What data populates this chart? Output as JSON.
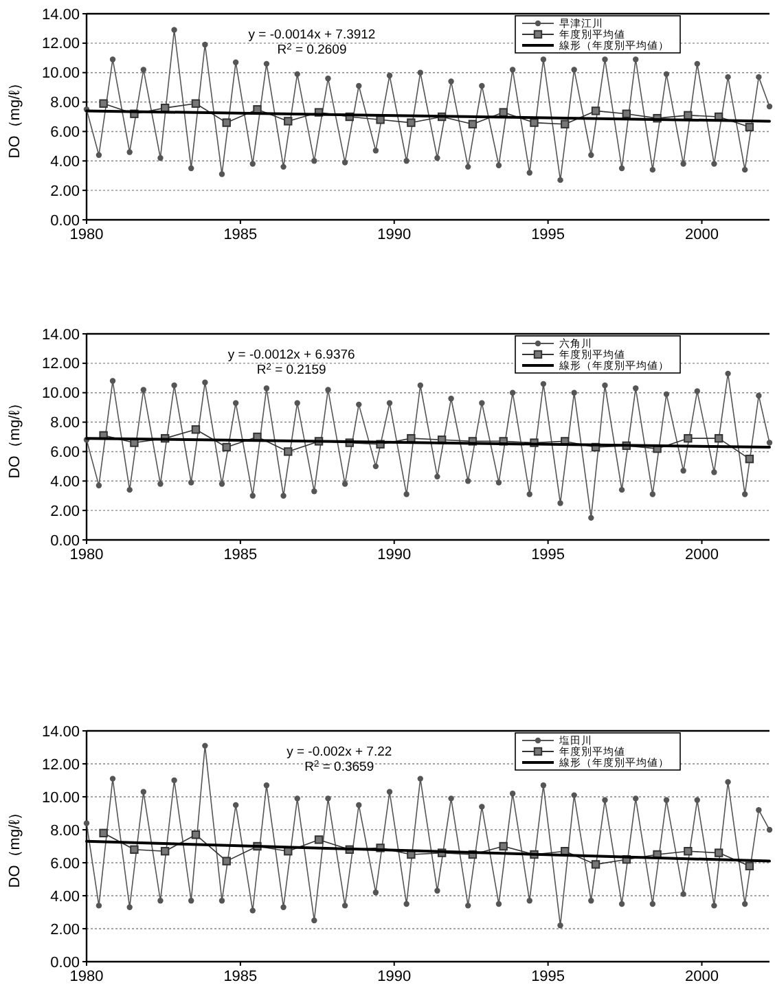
{
  "chart_data": [
    {
      "type": "line",
      "ylabel": "DO（mg/ℓ）",
      "xlim": [
        1980,
        2002.2
      ],
      "ylim": [
        0,
        14
      ],
      "xticks": [
        1980,
        1985,
        1990,
        1995,
        2000
      ],
      "yticks": [
        {
          "value": 0,
          "label": "0.00"
        },
        {
          "value": 2,
          "label": "2.00"
        },
        {
          "value": 4,
          "label": "4.00"
        },
        {
          "value": 6,
          "label": "6.00"
        },
        {
          "value": 8,
          "label": "8.00"
        },
        {
          "value": 10,
          "label": "10.00"
        },
        {
          "value": 12,
          "label": "12.00"
        },
        {
          "value": 14,
          "label": "14.00"
        }
      ],
      "grid": "y",
      "legend": "top right",
      "annotations": [
        "y = -0.0014x + 7.3912",
        "R$^{2}$ = 0.2609"
      ],
      "series": [
        {
          "name": "早津江川",
          "color": "#555555",
          "marker": "circle",
          "x": [
            1980,
            1980.4,
            1980.85,
            1981.4,
            1981.85,
            1982.4,
            1982.85,
            1983.4,
            1983.85,
            1984.4,
            1984.85,
            1985.4,
            1985.85,
            1986.4,
            1986.85,
            1987.4,
            1987.85,
            1988.4,
            1988.85,
            1989.4,
            1989.85,
            1990.4,
            1990.85,
            1991.4,
            1991.85,
            1992.4,
            1992.85,
            1993.4,
            1993.85,
            1994.4,
            1994.85,
            1995.4,
            1995.85,
            1996.4,
            1996.85,
            1997.4,
            1997.85,
            1998.4,
            1998.85,
            1999.4,
            1999.85,
            2000.4,
            2000.85,
            2001.4,
            2001.85,
            2002.2
          ],
          "values": [
            7.5,
            4.4,
            10.9,
            4.6,
            10.2,
            4.2,
            12.9,
            3.5,
            11.9,
            3.1,
            10.7,
            3.8,
            10.6,
            3.6,
            9.9,
            4.0,
            9.6,
            3.9,
            9.1,
            4.7,
            9.8,
            4.0,
            10.0,
            4.2,
            9.4,
            3.6,
            9.1,
            3.7,
            10.2,
            3.2,
            10.9,
            2.7,
            10.2,
            4.4,
            10.9,
            3.5,
            10.9,
            3.4,
            9.9,
            3.8,
            10.6,
            3.8,
            9.7,
            3.4,
            9.7,
            7.7
          ]
        },
        {
          "name": "年度別平均値",
          "color": "#333333",
          "marker": "square",
          "x": [
            1980.55,
            1981.55,
            1982.55,
            1983.55,
            1984.55,
            1985.55,
            1986.55,
            1987.55,
            1988.55,
            1989.55,
            1990.55,
            1991.55,
            1992.55,
            1993.55,
            1994.55,
            1995.55,
            1996.55,
            1997.55,
            1998.55,
            1999.55,
            2000.55,
            2001.55
          ],
          "values": [
            7.9,
            7.2,
            7.6,
            7.9,
            6.6,
            7.5,
            6.7,
            7.3,
            7.0,
            6.8,
            6.6,
            7.0,
            6.5,
            7.3,
            6.6,
            6.5,
            7.4,
            7.2,
            6.9,
            7.1,
            7.0,
            6.3
          ]
        },
        {
          "name": "線形（年度別平均値）",
          "color": "#000000",
          "marker": "none",
          "x": [
            1980,
            2002.2
          ],
          "values": [
            7.4,
            6.7
          ]
        }
      ]
    },
    {
      "type": "line",
      "ylabel": "DO（mg/ℓ）",
      "xlim": [
        1980,
        2002.2
      ],
      "ylim": [
        0,
        14
      ],
      "xticks": [
        1980,
        1985,
        1990,
        1995,
        2000
      ],
      "yticks": [
        {
          "value": 0,
          "label": "0.00"
        },
        {
          "value": 2,
          "label": "2.00"
        },
        {
          "value": 4,
          "label": "4.00"
        },
        {
          "value": 6,
          "label": "6.00"
        },
        {
          "value": 8,
          "label": "8.00"
        },
        {
          "value": 10,
          "label": "10.00"
        },
        {
          "value": 12,
          "label": "12.00"
        },
        {
          "value": 14,
          "label": "14.00"
        }
      ],
      "grid": "y",
      "legend": "top right",
      "annotations": [
        "y = -0.0012x + 6.9376",
        "R$^{2}$ = 0.2159"
      ],
      "series": [
        {
          "name": "六角川",
          "color": "#555555",
          "marker": "circle",
          "x": [
            1980,
            1980.4,
            1980.85,
            1981.4,
            1981.85,
            1982.4,
            1982.85,
            1983.4,
            1983.85,
            1984.4,
            1984.85,
            1985.4,
            1985.85,
            1986.4,
            1986.85,
            1987.4,
            1987.85,
            1988.4,
            1988.85,
            1989.4,
            1989.85,
            1990.4,
            1990.85,
            1991.4,
            1991.85,
            1992.4,
            1992.85,
            1993.4,
            1993.85,
            1994.4,
            1994.85,
            1995.4,
            1995.85,
            1996.4,
            1996.85,
            1997.4,
            1997.85,
            1998.4,
            1998.85,
            1999.4,
            1999.85,
            2000.4,
            2000.85,
            2001.4,
            2001.85,
            2002.2
          ],
          "values": [
            6.8,
            3.7,
            10.8,
            3.4,
            10.2,
            3.8,
            10.5,
            3.9,
            10.7,
            3.8,
            9.3,
            3.0,
            10.3,
            3.0,
            9.3,
            3.3,
            10.2,
            3.8,
            9.2,
            5.0,
            9.3,
            3.1,
            10.5,
            4.3,
            9.6,
            4.0,
            9.3,
            3.9,
            10.0,
            3.1,
            10.6,
            2.5,
            10.0,
            1.5,
            10.5,
            3.4,
            10.3,
            3.1,
            9.9,
            4.7,
            10.1,
            4.6,
            11.3,
            3.1,
            9.8,
            6.6
          ]
        },
        {
          "name": "年度別平均値",
          "color": "#333333",
          "marker": "square",
          "x": [
            1980.55,
            1981.55,
            1982.55,
            1983.55,
            1984.55,
            1985.55,
            1986.55,
            1987.55,
            1988.55,
            1989.55,
            1990.55,
            1991.55,
            1992.55,
            1993.55,
            1994.55,
            1995.55,
            1996.55,
            1997.55,
            1998.55,
            1999.55,
            2000.55,
            2001.55
          ],
          "values": [
            7.1,
            6.6,
            6.9,
            7.5,
            6.3,
            7.0,
            6.0,
            6.7,
            6.6,
            6.5,
            6.9,
            6.8,
            6.7,
            6.7,
            6.6,
            6.7,
            6.3,
            6.4,
            6.2,
            6.9,
            6.9,
            5.5
          ]
        },
        {
          "name": "線形（年度別平均値）",
          "color": "#000000",
          "marker": "none",
          "x": [
            1980,
            2002.2
          ],
          "values": [
            6.9,
            6.3
          ]
        }
      ]
    },
    {
      "type": "line",
      "ylabel": "DO（mg/ℓ）",
      "xlim": [
        1980,
        2002.2
      ],
      "ylim": [
        0,
        14
      ],
      "xticks": [
        1980,
        1985,
        1990,
        1995,
        2000
      ],
      "yticks": [
        {
          "value": 0,
          "label": "0.00"
        },
        {
          "value": 2,
          "label": "2.00"
        },
        {
          "value": 4,
          "label": "4.00"
        },
        {
          "value": 6,
          "label": "6.00"
        },
        {
          "value": 8,
          "label": "8.00"
        },
        {
          "value": 10,
          "label": "10.00"
        },
        {
          "value": 12,
          "label": "12.00"
        },
        {
          "value": 14,
          "label": "14.00"
        }
      ],
      "grid": "y",
      "legend": "top right",
      "annotations": [
        "y = -0.002x + 7.22",
        "R$^{2}$ = 0.3659"
      ],
      "series": [
        {
          "name": "塩田川",
          "color": "#555555",
          "marker": "circle",
          "x": [
            1980,
            1980.4,
            1980.85,
            1981.4,
            1981.85,
            1982.4,
            1982.85,
            1983.4,
            1983.85,
            1984.4,
            1984.85,
            1985.4,
            1985.85,
            1986.4,
            1986.85,
            1987.4,
            1987.85,
            1988.4,
            1988.85,
            1989.4,
            1989.85,
            1990.4,
            1990.85,
            1991.4,
            1991.85,
            1992.4,
            1992.85,
            1993.4,
            1993.85,
            1994.4,
            1994.85,
            1995.4,
            1995.85,
            1996.4,
            1996.85,
            1997.4,
            1997.85,
            1998.4,
            1998.85,
            1999.4,
            1999.85,
            2000.4,
            2000.85,
            2001.4,
            2001.85,
            2002.2
          ],
          "values": [
            8.4,
            3.4,
            11.1,
            3.3,
            10.3,
            3.7,
            11.0,
            3.7,
            13.1,
            3.7,
            9.5,
            3.1,
            10.7,
            3.3,
            9.9,
            2.5,
            9.9,
            3.4,
            9.5,
            4.2,
            10.3,
            3.5,
            11.1,
            4.3,
            9.9,
            3.4,
            9.4,
            3.5,
            10.2,
            3.7,
            10.7,
            2.2,
            10.1,
            3.7,
            9.8,
            3.5,
            9.9,
            3.5,
            9.8,
            4.1,
            9.8,
            3.4,
            10.9,
            3.5,
            9.2,
            8.0
          ]
        },
        {
          "name": "年度別平均値",
          "color": "#333333",
          "marker": "square",
          "x": [
            1980.55,
            1981.55,
            1982.55,
            1983.55,
            1984.55,
            1985.55,
            1986.55,
            1987.55,
            1988.55,
            1989.55,
            1990.55,
            1991.55,
            1992.55,
            1993.55,
            1994.55,
            1995.55,
            1996.55,
            1997.55,
            1998.55,
            1999.55,
            2000.55,
            2001.55
          ],
          "values": [
            7.8,
            6.8,
            6.7,
            7.7,
            6.1,
            7.0,
            6.7,
            7.4,
            6.8,
            6.9,
            6.5,
            6.6,
            6.5,
            7.0,
            6.5,
            6.7,
            5.9,
            6.2,
            6.5,
            6.7,
            6.6,
            5.8
          ]
        },
        {
          "name": "線形（年度別平均値）",
          "color": "#000000",
          "marker": "none",
          "x": [
            1980,
            2002.2
          ],
          "values": [
            7.3,
            6.1
          ]
        }
      ]
    }
  ]
}
